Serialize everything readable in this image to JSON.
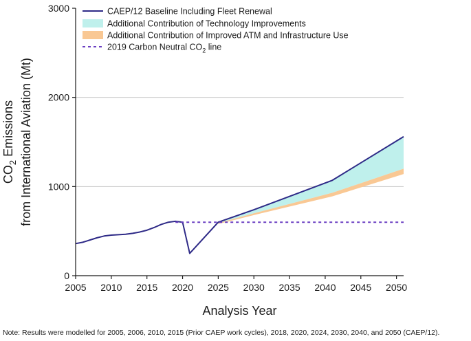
{
  "chart_data": {
    "type": "area",
    "xlabel": "Analysis Year",
    "ylabel_line1": "CO",
    "ylabel_sub": "2",
    "ylabel_line1_rest": " Emissions",
    "ylabel_line2": "from International Aviation (Mt)",
    "xlim": [
      2005,
      2051
    ],
    "ylim": [
      0,
      3000
    ],
    "xticks": [
      2005,
      2010,
      2015,
      2020,
      2025,
      2030,
      2035,
      2040,
      2045,
      2050
    ],
    "yticks": [
      0,
      1000,
      2000,
      3000
    ],
    "grid": "horizontal",
    "legend_position": "top-left",
    "series": [
      {
        "name": "CAEP/12 Baseline Including Fleet Renewal",
        "style": "line",
        "color": "#2e2a87",
        "x": [
          2005,
          2006,
          2007,
          2008,
          2009,
          2010,
          2011,
          2012,
          2013,
          2014,
          2015,
          2016,
          2017,
          2018,
          2019,
          2020,
          2021,
          2025,
          2030,
          2041,
          2051
        ],
        "y": [
          360,
          375,
          400,
          425,
          445,
          455,
          460,
          465,
          475,
          490,
          510,
          540,
          575,
          600,
          610,
          600,
          250,
          600,
          740,
          1070,
          1560
        ]
      },
      {
        "name": "Additional Contribution of Technology Improvements",
        "style": "band",
        "color": "#bff0ec",
        "x": [
          2025,
          2030,
          2041,
          2051
        ],
        "upper": [
          600,
          740,
          1070,
          1560
        ],
        "lower": [
          590,
          700,
          930,
          1200
        ]
      },
      {
        "name": "Additional Contribution of Improved ATM and Infrastructure Use",
        "style": "band",
        "color": "#f9c894",
        "x": [
          2025,
          2030,
          2041,
          2051
        ],
        "upper": [
          590,
          700,
          930,
          1200
        ],
        "lower": [
          580,
          680,
          890,
          1140
        ]
      },
      {
        "name": "2019 Carbon Neutral CO",
        "name_sub": "2",
        "name_rest": " line",
        "style": "dashed",
        "color": "#6a3ec2",
        "x": [
          2019,
          2051
        ],
        "y": [
          600,
          600
        ]
      }
    ]
  },
  "note": "Note: Results were modelled for 2005, 2006, 2010, 2015 (Prior CAEP work cycles), 2018, 2020, 2024, 2030, 2040, and 2050 (CAEP/12)."
}
